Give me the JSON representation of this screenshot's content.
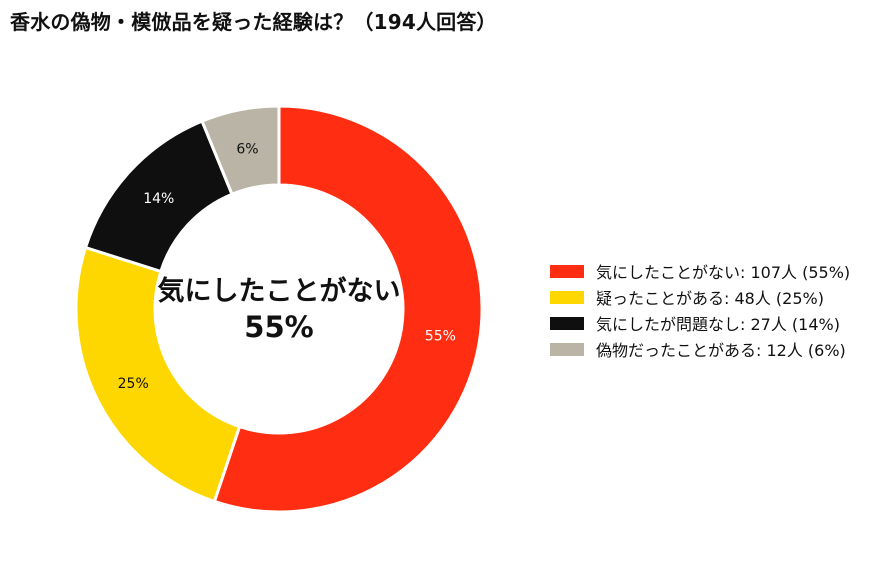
{
  "title": "香水の偽物・模倣品を疑った経験は？（194人回答）",
  "chart_data": {
    "type": "pie",
    "donut": true,
    "title": "香水の偽物・模倣品を疑った経験は？（194人回答）",
    "center_label": "気にしたことがない",
    "center_value": "55%",
    "legend_position": "right",
    "slices": [
      {
        "label": "気にしたことがない",
        "count": 107,
        "percent": 55,
        "pct_label": "55%",
        "legend": "気にしたことがない:  107人 (55%)",
        "color": "#ff2e12",
        "text_color": "#ffffff"
      },
      {
        "label": "疑ったことがある",
        "count": 48,
        "percent": 25,
        "pct_label": "25%",
        "legend": "疑ったことがある:  48人 (25%)",
        "color": "#ffd700",
        "text_color": "#111111"
      },
      {
        "label": "気にしたが問題なし",
        "count": 27,
        "percent": 14,
        "pct_label": "14%",
        "legend": "気にしたが問題なし:  27人 (14%)",
        "color": "#0f0f0f",
        "text_color": "#ffffff"
      },
      {
        "label": "偽物だったことがある",
        "count": 12,
        "percent": 6,
        "pct_label": "6%",
        "legend": "偽物だったことがある:  12人 (6%)",
        "color": "#bab4a6",
        "text_color": "#111111"
      }
    ]
  }
}
